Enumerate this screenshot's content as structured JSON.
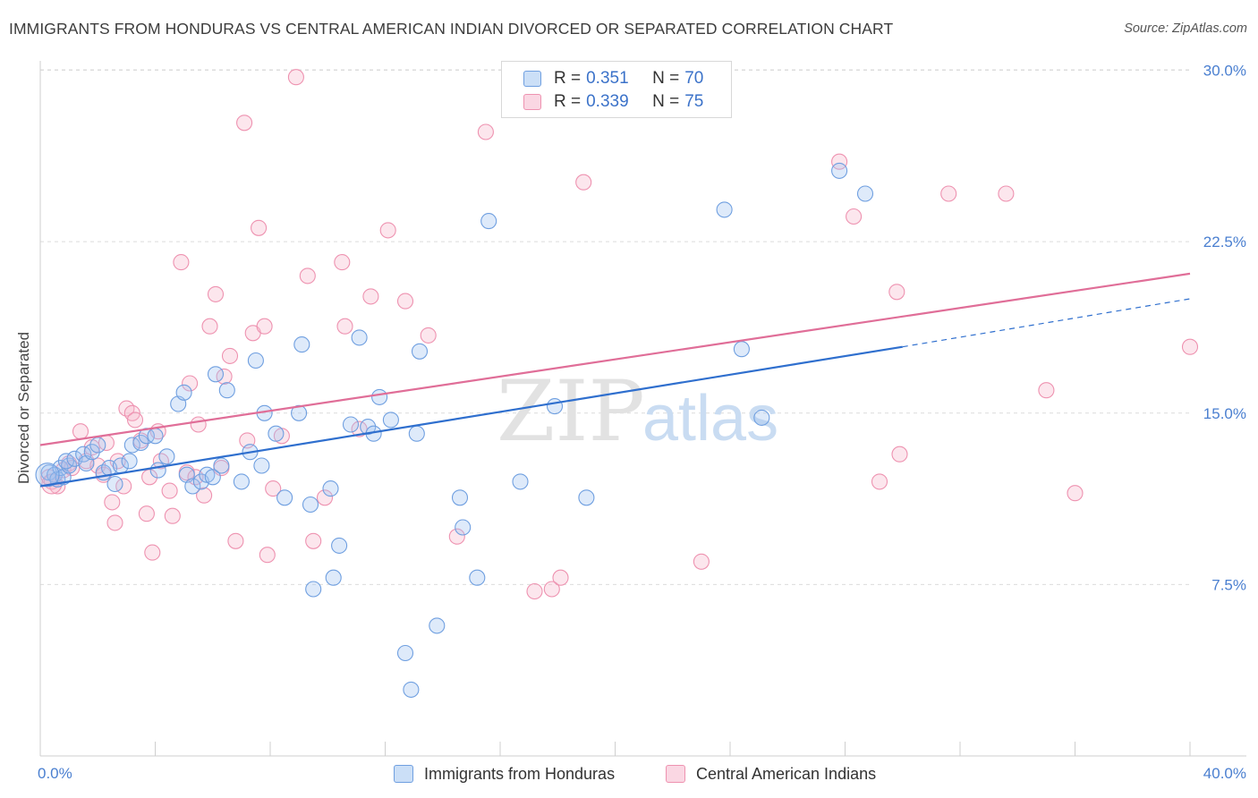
{
  "title": "IMMIGRANTS FROM HONDURAS VS CENTRAL AMERICAN INDIAN DIVORCED OR SEPARATED CORRELATION CHART",
  "source": "Source: ZipAtlas.com",
  "watermark": {
    "zip": "ZIP",
    "atlas": "atlas"
  },
  "colors": {
    "blue": "#6f9fe0",
    "blue_fill": "rgba(160,196,240,0.35)",
    "blue_line": "#2f6fce",
    "pink": "#ee92b0",
    "pink_fill": "rgba(246,182,204,0.35)",
    "pink_line": "#e06e98",
    "tick_text": "#4a7fd0",
    "grid": "#dcdcdc"
  },
  "legend": {
    "rows": [
      {
        "r_label": "R = ",
        "r_value": "0.351",
        "n_label": "N = ",
        "n_value": "70"
      },
      {
        "r_label": "R = ",
        "r_value": "0.339",
        "n_label": "N = ",
        "n_value": "75"
      }
    ]
  },
  "bottom_legend": {
    "series1": "Immigrants from Honduras",
    "series2": "Central American Indians"
  },
  "chart_data": {
    "type": "scatter",
    "title": "IMMIGRANTS FROM HONDURAS VS CENTRAL AMERICAN INDIAN DIVORCED OR SEPARATED CORRELATION CHART",
    "ylabel": "Divorced or Separated",
    "xlabel": "",
    "xlim": [
      0,
      40
    ],
    "ylim": [
      0,
      31.5
    ],
    "x_ticks_labels": [
      "0.0%",
      "40.0%"
    ],
    "y_ticks": [
      7.5,
      15.0,
      22.5,
      30.0
    ],
    "y_tick_labels": [
      "7.5%",
      "15.0%",
      "22.5%",
      "30.0%"
    ],
    "grid": true,
    "legend_position": "top-center",
    "series": [
      {
        "name": "Immigrants from Honduras",
        "color": "blue",
        "R": 0.351,
        "N": 70,
        "trend": {
          "x0": 0,
          "y0": 11.8,
          "x1": 30.0,
          "y1": 17.9,
          "dashed_to_x": 40,
          "dashed_to_y": 20.0
        },
        "points": [
          [
            0.3,
            12.4
          ],
          [
            0.5,
            12.3
          ],
          [
            0.6,
            12.1
          ],
          [
            0.7,
            12.6
          ],
          [
            0.8,
            12.2
          ],
          [
            1.0,
            12.7
          ],
          [
            0.9,
            12.9
          ],
          [
            1.2,
            13.0
          ],
          [
            1.5,
            13.2
          ],
          [
            1.6,
            12.8
          ],
          [
            1.8,
            13.3
          ],
          [
            2.0,
            13.6
          ],
          [
            2.2,
            12.4
          ],
          [
            2.4,
            12.6
          ],
          [
            2.6,
            11.9
          ],
          [
            2.8,
            12.7
          ],
          [
            3.1,
            12.9
          ],
          [
            3.2,
            13.6
          ],
          [
            3.5,
            13.7
          ],
          [
            3.7,
            14.0
          ],
          [
            4.0,
            14.0
          ],
          [
            4.1,
            12.5
          ],
          [
            4.4,
            13.1
          ],
          [
            4.8,
            15.4
          ],
          [
            5.0,
            15.9
          ],
          [
            5.1,
            12.3
          ],
          [
            5.3,
            11.8
          ],
          [
            5.6,
            12.0
          ],
          [
            5.8,
            12.3
          ],
          [
            6.0,
            12.2
          ],
          [
            6.1,
            16.7
          ],
          [
            6.3,
            12.7
          ],
          [
            6.5,
            16.0
          ],
          [
            7.0,
            12.0
          ],
          [
            7.3,
            13.3
          ],
          [
            7.5,
            17.3
          ],
          [
            7.7,
            12.7
          ],
          [
            7.8,
            15.0
          ],
          [
            8.2,
            14.1
          ],
          [
            8.5,
            11.3
          ],
          [
            9.0,
            15.0
          ],
          [
            9.1,
            18.0
          ],
          [
            9.4,
            11.0
          ],
          [
            9.5,
            7.3
          ],
          [
            10.1,
            11.7
          ],
          [
            10.2,
            7.8
          ],
          [
            10.4,
            9.2
          ],
          [
            10.8,
            14.5
          ],
          [
            11.1,
            18.3
          ],
          [
            11.4,
            14.4
          ],
          [
            11.6,
            14.1
          ],
          [
            11.8,
            15.7
          ],
          [
            12.2,
            14.7
          ],
          [
            12.7,
            4.5
          ],
          [
            12.9,
            2.9
          ],
          [
            13.1,
            14.1
          ],
          [
            13.2,
            17.7
          ],
          [
            13.8,
            5.7
          ],
          [
            14.6,
            11.3
          ],
          [
            14.7,
            10.0
          ],
          [
            15.2,
            7.8
          ],
          [
            15.6,
            23.4
          ],
          [
            16.7,
            12.0
          ],
          [
            17.9,
            15.3
          ],
          [
            19.0,
            11.3
          ],
          [
            23.8,
            23.9
          ],
          [
            24.4,
            17.8
          ],
          [
            25.1,
            14.8
          ],
          [
            27.8,
            25.6
          ],
          [
            28.7,
            24.6
          ]
        ]
      },
      {
        "name": "Central American Indians",
        "color": "pink",
        "R": 0.339,
        "N": 75,
        "trend": {
          "x0": 0,
          "y0": 13.6,
          "x1": 40,
          "y1": 21.1
        },
        "points": [
          [
            0.3,
            12.2
          ],
          [
            0.4,
            12.0
          ],
          [
            0.6,
            11.8
          ],
          [
            0.8,
            12.5
          ],
          [
            1.0,
            12.8
          ],
          [
            1.1,
            12.6
          ],
          [
            1.4,
            14.2
          ],
          [
            1.6,
            12.9
          ],
          [
            1.8,
            13.5
          ],
          [
            2.0,
            12.7
          ],
          [
            2.2,
            12.3
          ],
          [
            2.3,
            13.7
          ],
          [
            2.5,
            11.1
          ],
          [
            2.7,
            12.9
          ],
          [
            2.6,
            10.2
          ],
          [
            2.9,
            11.8
          ],
          [
            3.0,
            15.2
          ],
          [
            3.2,
            15.0
          ],
          [
            3.3,
            14.7
          ],
          [
            3.5,
            13.8
          ],
          [
            3.7,
            10.6
          ],
          [
            3.8,
            12.2
          ],
          [
            3.9,
            8.9
          ],
          [
            4.1,
            14.2
          ],
          [
            4.2,
            12.9
          ],
          [
            4.5,
            11.6
          ],
          [
            4.6,
            10.5
          ],
          [
            4.9,
            21.6
          ],
          [
            5.1,
            12.4
          ],
          [
            5.2,
            16.3
          ],
          [
            5.4,
            12.2
          ],
          [
            5.5,
            14.5
          ],
          [
            5.7,
            11.4
          ],
          [
            5.9,
            18.8
          ],
          [
            6.1,
            20.2
          ],
          [
            6.3,
            12.6
          ],
          [
            6.4,
            16.6
          ],
          [
            6.6,
            17.5
          ],
          [
            6.8,
            9.4
          ],
          [
            7.1,
            27.7
          ],
          [
            7.2,
            13.8
          ],
          [
            7.4,
            18.5
          ],
          [
            7.6,
            23.1
          ],
          [
            7.8,
            18.8
          ],
          [
            7.9,
            8.8
          ],
          [
            8.1,
            11.7
          ],
          [
            8.4,
            14.0
          ],
          [
            8.9,
            29.7
          ],
          [
            9.3,
            21.0
          ],
          [
            9.5,
            9.4
          ],
          [
            9.9,
            11.3
          ],
          [
            10.5,
            21.6
          ],
          [
            10.6,
            18.8
          ],
          [
            11.1,
            14.3
          ],
          [
            11.5,
            20.1
          ],
          [
            12.1,
            23.0
          ],
          [
            12.7,
            19.9
          ],
          [
            13.5,
            18.4
          ],
          [
            14.5,
            9.6
          ],
          [
            15.5,
            27.3
          ],
          [
            17.2,
            7.2
          ],
          [
            17.8,
            7.3
          ],
          [
            18.1,
            7.8
          ],
          [
            18.9,
            25.1
          ],
          [
            23.0,
            8.5
          ],
          [
            27.8,
            26.0
          ],
          [
            28.3,
            23.6
          ],
          [
            29.2,
            12.0
          ],
          [
            29.8,
            20.3
          ],
          [
            29.9,
            13.2
          ],
          [
            31.6,
            24.6
          ],
          [
            33.6,
            24.6
          ],
          [
            35.0,
            16.0
          ],
          [
            40.0,
            17.9
          ],
          [
            36.0,
            11.5
          ]
        ]
      }
    ]
  }
}
